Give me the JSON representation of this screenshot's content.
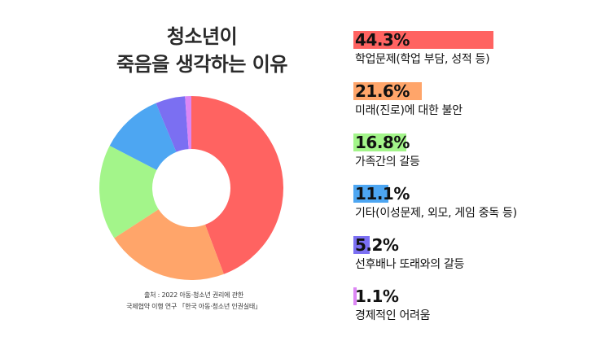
{
  "title": {
    "line1": "청소년이",
    "line2": "죽음을 생각하는 이유"
  },
  "source": {
    "line1": "출처 : 2022 아동·청소년 권리에 관한",
    "line2": "국제협약 이행 연구 「한국 아동·청소년 인권실태」"
  },
  "chart_data": {
    "type": "pie",
    "variant": "donut",
    "title": "청소년이 죽음을 생각하는 이유",
    "unit": "%",
    "grid": false,
    "legend_placement": "right",
    "categories": [
      "학업문제(학업 부담, 성적 등)",
      "미래(진로)에 대한 불안",
      "가족간의 갈등",
      "기타(이성문제, 외모, 게임 중독 등)",
      "선후배나 또래와의 갈등",
      "경제적인 어려움"
    ],
    "values": [
      44.3,
      21.6,
      16.8,
      11.1,
      5.2,
      1.1
    ],
    "value_labels": [
      "44.3%",
      "21.6%",
      "16.8%",
      "11.1%",
      "5.2%",
      "1.1%"
    ],
    "colors": [
      "#ff6361",
      "#ffa56a",
      "#a3f58a",
      "#4da6f2",
      "#7b6ff2",
      "#dc86f4"
    ]
  }
}
